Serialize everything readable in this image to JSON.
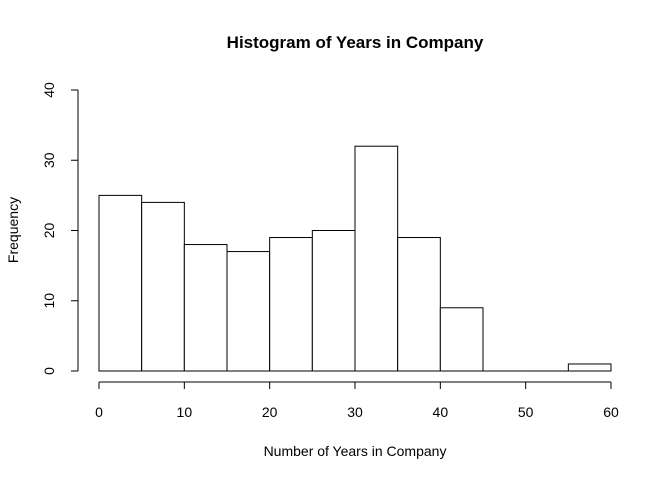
{
  "chart_data": {
    "type": "bar",
    "title": "Histogram of Years in Company",
    "xlabel": "Number of Years in Company",
    "ylabel": "Frequency",
    "bins": [
      {
        "x0": 0,
        "x1": 5,
        "count": 25
      },
      {
        "x0": 5,
        "x1": 10,
        "count": 24
      },
      {
        "x0": 10,
        "x1": 15,
        "count": 18
      },
      {
        "x0": 15,
        "x1": 20,
        "count": 17
      },
      {
        "x0": 20,
        "x1": 25,
        "count": 19
      },
      {
        "x0": 25,
        "x1": 30,
        "count": 20
      },
      {
        "x0": 30,
        "x1": 35,
        "count": 32
      },
      {
        "x0": 35,
        "x1": 40,
        "count": 19
      },
      {
        "x0": 40,
        "x1": 45,
        "count": 9
      },
      {
        "x0": 45,
        "x1": 50,
        "count": 0
      },
      {
        "x0": 50,
        "x1": 55,
        "count": 0
      },
      {
        "x0": 55,
        "x1": 60,
        "count": 1
      }
    ],
    "xlim": [
      0,
      60
    ],
    "ylim": [
      0,
      40
    ],
    "xticks": [
      0,
      10,
      20,
      30,
      40,
      50,
      60
    ],
    "yticks": [
      0,
      10,
      20,
      30,
      40
    ],
    "grid": false,
    "bar_fill": "#ffffff",
    "bar_stroke": "#000000"
  }
}
